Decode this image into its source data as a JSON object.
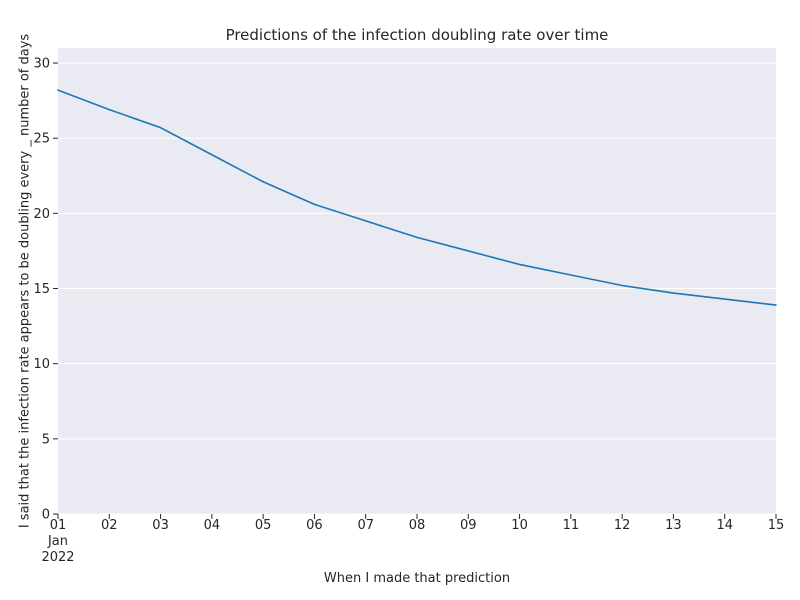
{
  "chart_data": {
    "type": "line",
    "title": "Predictions of the infection doubling rate over time",
    "xlabel": "When I made that prediction",
    "ylabel": "I said that the infection rate appears to be doubling every _ number of days",
    "x_tick_labels": [
      "01",
      "02",
      "03",
      "04",
      "05",
      "06",
      "07",
      "08",
      "09",
      "10",
      "11",
      "12",
      "13",
      "14",
      "15"
    ],
    "x_tick_sublabel_month": "Jan",
    "x_tick_sublabel_year": "2022",
    "x": [
      "2022-01-01",
      "2022-01-02",
      "2022-01-03",
      "2022-01-04",
      "2022-01-05",
      "2022-01-06",
      "2022-01-07",
      "2022-01-08",
      "2022-01-09",
      "2022-01-10",
      "2022-01-11",
      "2022-01-12",
      "2022-01-13",
      "2022-01-14",
      "2022-01-15"
    ],
    "y_ticks": [
      0,
      5,
      10,
      15,
      20,
      25,
      30
    ],
    "ylim": [
      0,
      31
    ],
    "series": [
      {
        "values": [
          28.2,
          26.9,
          25.7,
          23.9,
          22.1,
          20.6,
          19.5,
          18.4,
          17.5,
          16.6,
          15.9,
          15.2,
          14.7,
          14.3,
          13.9
        ],
        "color": "#1f77b4"
      }
    ],
    "background_color": "#eaeaf2",
    "grid": "y",
    "grid_color": "#ffffff"
  }
}
